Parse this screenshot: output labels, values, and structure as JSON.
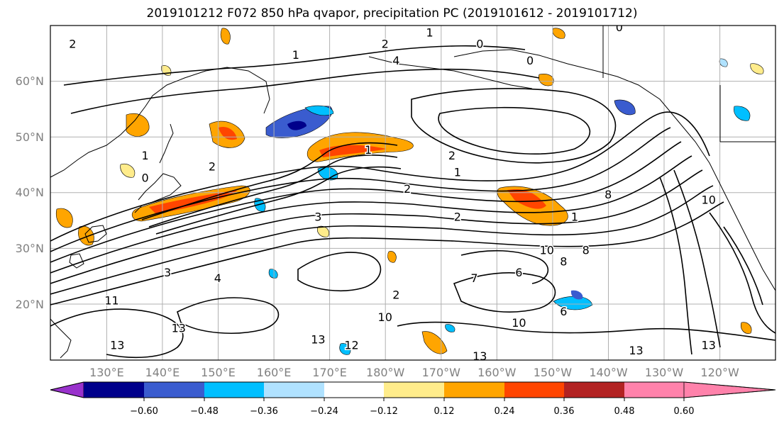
{
  "title": "2019101212 F072 850 hPa qvapor, precipitation PC (2019101612 - 2019101712)",
  "map": {
    "lat_labels": [
      "60°N",
      "50°N",
      "40°N",
      "30°N",
      "20°N"
    ],
    "lon_labels": [
      "130°E",
      "140°E",
      "150°E",
      "160°E",
      "170°E",
      "180°W",
      "170°W",
      "160°W",
      "150°W",
      "140°W",
      "130°W",
      "120°W"
    ],
    "contour_labels": [
      {
        "text": "2",
        "lon": 124,
        "lat": 66
      },
      {
        "text": "1",
        "lon": 164,
        "lat": 64
      },
      {
        "text": "2",
        "lon": 180,
        "lat": 66
      },
      {
        "text": "1",
        "lon": 188,
        "lat": 68
      },
      {
        "text": "0",
        "lon": 197,
        "lat": 66
      },
      {
        "text": "4",
        "lon": 182,
        "lat": 63
      },
      {
        "text": "0",
        "lon": 206,
        "lat": 63
      },
      {
        "text": "0",
        "lon": 222,
        "lat": 69
      },
      {
        "text": "1",
        "lon": 177,
        "lat": 47
      },
      {
        "text": "2",
        "lon": 192,
        "lat": 46
      },
      {
        "text": "1",
        "lon": 193,
        "lat": 43
      },
      {
        "text": "2",
        "lon": 149,
        "lat": 44
      },
      {
        "text": "0",
        "lon": 137,
        "lat": 42
      },
      {
        "text": "1",
        "lon": 137,
        "lat": 46
      },
      {
        "text": "2",
        "lon": 184,
        "lat": 40
      },
      {
        "text": "3",
        "lon": 168,
        "lat": 35
      },
      {
        "text": "2",
        "lon": 193,
        "lat": 35
      },
      {
        "text": "8",
        "lon": 220,
        "lat": 39
      },
      {
        "text": "10",
        "lon": 238,
        "lat": 38
      },
      {
        "text": "1",
        "lon": 214,
        "lat": 35
      },
      {
        "text": "10",
        "lon": 209,
        "lat": 29
      },
      {
        "text": "8",
        "lon": 212,
        "lat": 27
      },
      {
        "text": "8",
        "lon": 216,
        "lat": 29
      },
      {
        "text": "6",
        "lon": 204,
        "lat": 25
      },
      {
        "text": "7",
        "lon": 196,
        "lat": 24
      },
      {
        "text": "2",
        "lon": 182,
        "lat": 21
      },
      {
        "text": "4",
        "lon": 150,
        "lat": 24
      },
      {
        "text": "3",
        "lon": 141,
        "lat": 25
      },
      {
        "text": "11",
        "lon": 131,
        "lat": 20
      },
      {
        "text": "13",
        "lon": 143,
        "lat": 15
      },
      {
        "text": "13",
        "lon": 132,
        "lat": 12
      },
      {
        "text": "13",
        "lon": 168,
        "lat": 13
      },
      {
        "text": "12",
        "lon": 174,
        "lat": 12
      },
      {
        "text": "10",
        "lon": 180,
        "lat": 17
      },
      {
        "text": "10",
        "lon": 204,
        "lat": 16
      },
      {
        "text": "6",
        "lon": 212,
        "lat": 18
      },
      {
        "text": "13",
        "lon": 197,
        "lat": 10
      },
      {
        "text": "13",
        "lon": 225,
        "lat": 11
      },
      {
        "text": "13",
        "lon": 238,
        "lat": 12
      }
    ]
  },
  "colorbar": {
    "tick_labels": [
      "−0.60",
      "−0.48",
      "−0.36",
      "−0.24",
      "−0.12",
      "0.12",
      "0.24",
      "0.36",
      "0.48",
      "0.60"
    ],
    "colors": [
      "#9932CC",
      "#00008B",
      "#3A5CCF",
      "#00BFFF",
      "#B0E2FF",
      "#FFFFFF",
      "#FFEC8B",
      "#FFA500",
      "#FF4500",
      "#B22222",
      "#FF82AB"
    ]
  },
  "colors": {
    "positive_fill": [
      "#FFEC8B",
      "#FFA500",
      "#FF4500",
      "#B22222"
    ],
    "negative_fill": [
      "#B0E2FF",
      "#00BFFF",
      "#3A5CCF",
      "#00008B"
    ],
    "grid": "#b0b0b0",
    "land": "#000000"
  }
}
